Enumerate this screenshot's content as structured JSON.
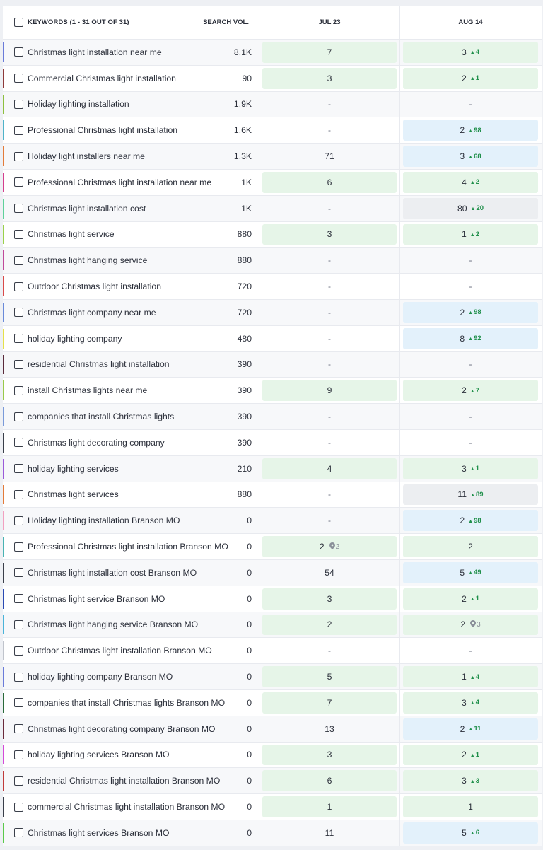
{
  "header": {
    "keywords_label": "KEYWORDS (1 - 31 OUT OF 31)",
    "volume_label": "SEARCH VOL.",
    "col1_label": "JUL 23",
    "col2_label": "AUG 14"
  },
  "colors": {
    "pill_green": "#e6f5e8",
    "pill_blue": "#e3f1fb",
    "pill_gray": "#eceef1",
    "delta_up": "#1f8f4a"
  },
  "rows": [
    {
      "keyword": "Christmas light installation near me",
      "volume": "8.1K",
      "stripe": "#6a7bd9",
      "jul": {
        "rank": "7",
        "pill": "green"
      },
      "aug": {
        "rank": "3",
        "delta": "4",
        "pill": "green"
      }
    },
    {
      "keyword": "Commercial Christmas light installation",
      "volume": "90",
      "stripe": "#8e3a3a",
      "jul": {
        "rank": "3",
        "pill": "green"
      },
      "aug": {
        "rank": "2",
        "delta": "1",
        "pill": "green"
      }
    },
    {
      "keyword": "Holiday lighting installation",
      "volume": "1.9K",
      "stripe": "#8dbf3e",
      "jul": {
        "rank": "-"
      },
      "aug": {
        "rank": "-"
      }
    },
    {
      "keyword": "Professional Christmas light installation",
      "volume": "1.6K",
      "stripe": "#4fb3c9",
      "jul": {
        "rank": "-"
      },
      "aug": {
        "rank": "2",
        "delta": "98",
        "pill": "blue"
      }
    },
    {
      "keyword": "Holiday light installers near me",
      "volume": "1.3K",
      "stripe": "#e37b3a",
      "jul": {
        "rank": "71"
      },
      "aug": {
        "rank": "3",
        "delta": "68",
        "pill": "blue"
      }
    },
    {
      "keyword": "Professional Christmas light installation near me",
      "volume": "1K",
      "stripe": "#d43f8d",
      "jul": {
        "rank": "6",
        "pill": "green"
      },
      "aug": {
        "rank": "4",
        "delta": "2",
        "pill": "green"
      }
    },
    {
      "keyword": "Christmas light installation cost",
      "volume": "1K",
      "stripe": "#5fd19a",
      "jul": {
        "rank": "-"
      },
      "aug": {
        "rank": "80",
        "delta": "20",
        "pill": "gray"
      }
    },
    {
      "keyword": "Christmas light service",
      "volume": "880",
      "stripe": "#9ad14a",
      "jul": {
        "rank": "3",
        "pill": "green"
      },
      "aug": {
        "rank": "1",
        "delta": "2",
        "pill": "green"
      }
    },
    {
      "keyword": "Christmas light hanging service",
      "volume": "880",
      "stripe": "#c04a9a",
      "jul": {
        "rank": "-"
      },
      "aug": {
        "rank": "-"
      }
    },
    {
      "keyword": "Outdoor Christmas light installation",
      "volume": "720",
      "stripe": "#d94a4a",
      "jul": {
        "rank": "-"
      },
      "aug": {
        "rank": "-"
      }
    },
    {
      "keyword": "Christmas light company near me",
      "volume": "720",
      "stripe": "#6a8ad9",
      "jul": {
        "rank": "-"
      },
      "aug": {
        "rank": "2",
        "delta": "98",
        "pill": "blue"
      }
    },
    {
      "keyword": "holiday lighting company",
      "volume": "480",
      "stripe": "#e6e04a",
      "jul": {
        "rank": "-"
      },
      "aug": {
        "rank": "8",
        "delta": "92",
        "pill": "blue"
      }
    },
    {
      "keyword": "residential Christmas light installation",
      "volume": "390",
      "stripe": "#5a2a3a",
      "jul": {
        "rank": "-"
      },
      "aug": {
        "rank": "-"
      }
    },
    {
      "keyword": "install Christmas lights near me",
      "volume": "390",
      "stripe": "#9ac94a",
      "jul": {
        "rank": "9",
        "pill": "green"
      },
      "aug": {
        "rank": "2",
        "delta": "7",
        "pill": "green"
      }
    },
    {
      "keyword": "companies that install Christmas lights",
      "volume": "390",
      "stripe": "#7a9ad9",
      "jul": {
        "rank": "-"
      },
      "aug": {
        "rank": "-"
      }
    },
    {
      "keyword": "Christmas light decorating company",
      "volume": "390",
      "stripe": "#3a3f4a",
      "jul": {
        "rank": "-"
      },
      "aug": {
        "rank": "-"
      }
    },
    {
      "keyword": "holiday lighting services",
      "volume": "210",
      "stripe": "#9a5ad9",
      "jul": {
        "rank": "4",
        "pill": "green"
      },
      "aug": {
        "rank": "3",
        "delta": "1",
        "pill": "green"
      }
    },
    {
      "keyword": "Christmas light services",
      "volume": "880",
      "stripe": "#e37b3a",
      "jul": {
        "rank": "-"
      },
      "aug": {
        "rank": "11",
        "delta": "89",
        "pill": "gray"
      }
    },
    {
      "keyword": "Holiday lighting installation Branson MO",
      "volume": "0",
      "stripe": "#f2a0c0",
      "jul": {
        "rank": "-"
      },
      "aug": {
        "rank": "2",
        "delta": "98",
        "pill": "blue"
      }
    },
    {
      "keyword": "Professional Christmas light installation Branson MO",
      "volume": "0",
      "stripe": "#4ab3b3",
      "jul": {
        "rank": "2",
        "pin": "2",
        "pill": "green"
      },
      "aug": {
        "rank": "2",
        "pill": "green"
      }
    },
    {
      "keyword": "Christmas light installation cost Branson MO",
      "volume": "0",
      "stripe": "#3a3f4a",
      "jul": {
        "rank": "54"
      },
      "aug": {
        "rank": "5",
        "delta": "49",
        "pill": "blue"
      }
    },
    {
      "keyword": "Christmas light service Branson MO",
      "volume": "0",
      "stripe": "#2a4ab3",
      "jul": {
        "rank": "3",
        "pill": "green"
      },
      "aug": {
        "rank": "2",
        "delta": "1",
        "pill": "green"
      }
    },
    {
      "keyword": "Christmas light hanging service Branson MO",
      "volume": "0",
      "stripe": "#4ab3d9",
      "jul": {
        "rank": "2",
        "pill": "green"
      },
      "aug": {
        "rank": "2",
        "pin": "3",
        "pill": "green"
      }
    },
    {
      "keyword": "Outdoor Christmas light installation Branson MO",
      "volume": "0",
      "stripe": "#c0c4cc",
      "jul": {
        "rank": "-"
      },
      "aug": {
        "rank": "-"
      }
    },
    {
      "keyword": "holiday lighting company Branson MO",
      "volume": "0",
      "stripe": "#6a7bd9",
      "jul": {
        "rank": "5",
        "pill": "green"
      },
      "aug": {
        "rank": "1",
        "delta": "4",
        "pill": "green"
      }
    },
    {
      "keyword": "companies that install Christmas lights Branson MO",
      "volume": "0",
      "stripe": "#2a6a3a",
      "jul": {
        "rank": "7",
        "pill": "green"
      },
      "aug": {
        "rank": "3",
        "delta": "4",
        "pill": "green"
      }
    },
    {
      "keyword": "Christmas light decorating company Branson MO",
      "volume": "0",
      "stripe": "#6a2a3a",
      "jul": {
        "rank": "13"
      },
      "aug": {
        "rank": "2",
        "delta": "11",
        "pill": "blue"
      }
    },
    {
      "keyword": "holiday lighting services Branson MO",
      "volume": "0",
      "stripe": "#d44ad9",
      "jul": {
        "rank": "3",
        "pill": "green"
      },
      "aug": {
        "rank": "2",
        "delta": "1",
        "pill": "green"
      }
    },
    {
      "keyword": "residential Christmas light installation Branson MO",
      "volume": "0",
      "stripe": "#c03a3a",
      "jul": {
        "rank": "6",
        "pill": "green"
      },
      "aug": {
        "rank": "3",
        "delta": "3",
        "pill": "green"
      }
    },
    {
      "keyword": "commercial Christmas light installation Branson MO",
      "volume": "0",
      "stripe": "#3a3f4a",
      "jul": {
        "rank": "1",
        "pill": "green"
      },
      "aug": {
        "rank": "1",
        "pill": "green"
      }
    },
    {
      "keyword": "Christmas light services Branson MO",
      "volume": "0",
      "stripe": "#5ac94a",
      "jul": {
        "rank": "11"
      },
      "aug": {
        "rank": "5",
        "delta": "6",
        "pill": "blue"
      }
    }
  ]
}
